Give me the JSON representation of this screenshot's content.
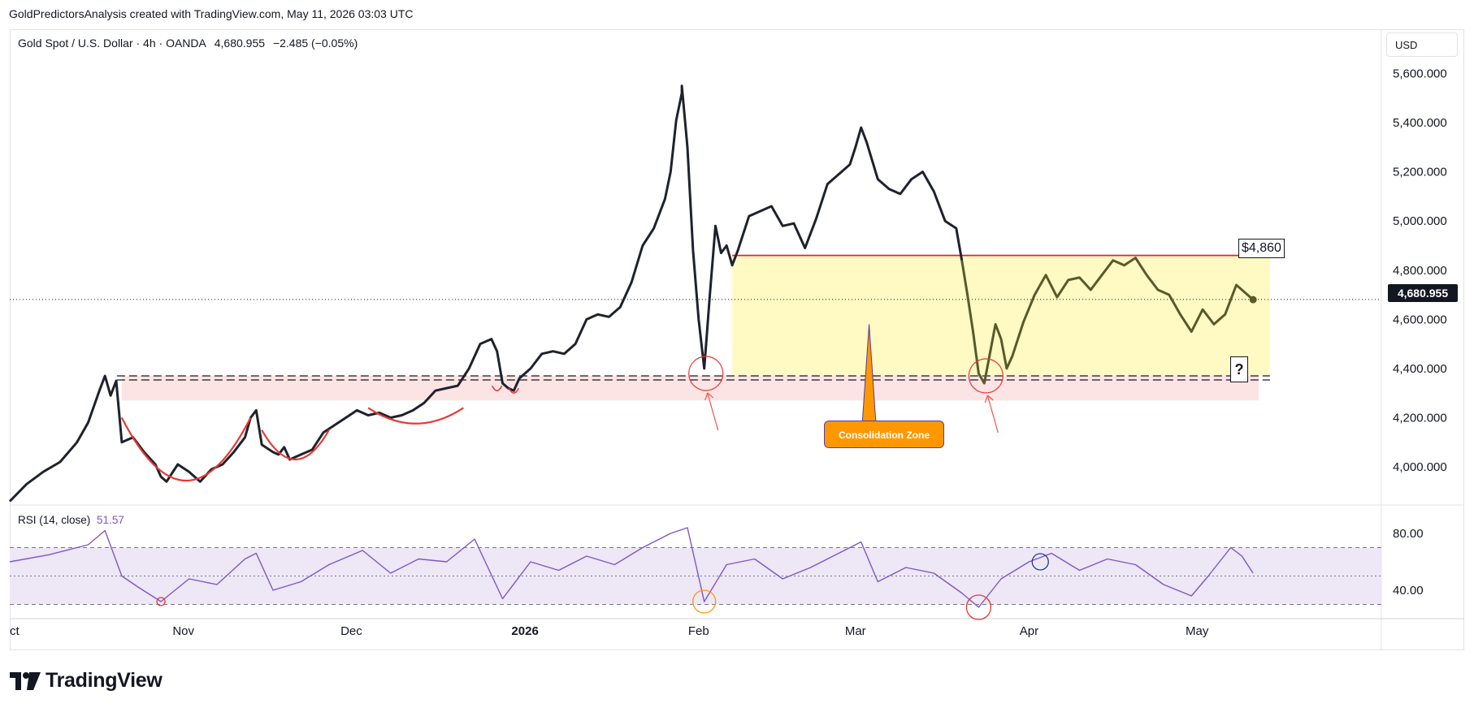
{
  "attribution": "GoldPredictorsAnalysis created with TradingView.com, May 11, 2026 03:03 UTC",
  "legend": {
    "symbol": "Gold Spot / U.S. Dollar · 4h · OANDA",
    "price": "4,680.955",
    "change": "−2.485 (−0.05%)"
  },
  "currency_button": "USD",
  "rsi_legend": {
    "label": "RSI (14, close)",
    "value": "51.57"
  },
  "current_price_tag": "4,680.955",
  "annotations": {
    "resistance_label": "$4,860",
    "zone_callout": "Consolidation Zone",
    "question_box": "?"
  },
  "logo_text": "TradingView",
  "colors": {
    "price_line": "#1e222d",
    "price_line_in_zone": "#585a2a",
    "consolidation_zone": "#fff9c4",
    "support_band": "#fde4e4",
    "resistance_line": "#e91e3f",
    "rsi_line": "#7e57c2",
    "rsi_band": "#ede7f6",
    "callout": "#ff9800"
  },
  "chart_data": [
    {
      "type": "line",
      "name": "price",
      "y_ticks": [
        "5,600.000",
        "5,400.000",
        "5,200.000",
        "5,000.000",
        "4,800.000",
        "4,600.000",
        "4,400.000",
        "4,200.000",
        "4,000.000"
      ],
      "y_tick_values": [
        5600,
        5400,
        5200,
        5000,
        4800,
        4600,
        4400,
        4200,
        4000
      ],
      "ylim": [
        3845,
        5780
      ],
      "x_ticks": [
        "ct",
        "Nov",
        "Dec",
        "2026",
        "Feb",
        "Mar",
        "Apr",
        "May"
      ],
      "x_tick_dates": [
        "2025-10-01",
        "2025-11-01",
        "2025-12-01",
        "2026-01-01",
        "2026-02-01",
        "2026-03-01",
        "2026-04-01",
        "2026-05-01"
      ],
      "xlim": [
        "2025-10-01",
        "2026-05-31"
      ],
      "grid": false,
      "series": [
        {
          "points": [
            [
              "2025-10-01",
              3860
            ],
            [
              "2025-10-04",
              3930
            ],
            [
              "2025-10-07",
              3980
            ],
            [
              "2025-10-10",
              4020
            ],
            [
              "2025-10-13",
              4100
            ],
            [
              "2025-10-15",
              4180
            ],
            [
              "2025-10-17",
              4310
            ],
            [
              "2025-10-18",
              4370
            ],
            [
              "2025-10-19",
              4290
            ],
            [
              "2025-10-20",
              4350
            ],
            [
              "2025-10-21",
              4100
            ],
            [
              "2025-10-23",
              4120
            ],
            [
              "2025-10-25",
              4060
            ],
            [
              "2025-10-27",
              4010
            ],
            [
              "2025-10-28",
              3960
            ],
            [
              "2025-10-29",
              3940
            ],
            [
              "2025-10-31",
              4010
            ],
            [
              "2025-11-02",
              3980
            ],
            [
              "2025-11-04",
              3940
            ],
            [
              "2025-11-06",
              3990
            ],
            [
              "2025-11-08",
              4010
            ],
            [
              "2025-11-10",
              4060
            ],
            [
              "2025-11-12",
              4120
            ],
            [
              "2025-11-13",
              4200
            ],
            [
              "2025-11-14",
              4230
            ],
            [
              "2025-11-15",
              4090
            ],
            [
              "2025-11-17",
              4060
            ],
            [
              "2025-11-18",
              4050
            ],
            [
              "2025-11-19",
              4080
            ],
            [
              "2025-11-20",
              4030
            ],
            [
              "2025-11-22",
              4050
            ],
            [
              "2025-11-24",
              4070
            ],
            [
              "2025-11-26",
              4140
            ],
            [
              "2025-11-28",
              4170
            ],
            [
              "2025-11-30",
              4200
            ],
            [
              "2025-12-02",
              4230
            ],
            [
              "2025-12-04",
              4210
            ],
            [
              "2025-12-06",
              4220
            ],
            [
              "2025-12-08",
              4200
            ],
            [
              "2025-12-10",
              4210
            ],
            [
              "2025-12-12",
              4230
            ],
            [
              "2025-12-14",
              4260
            ],
            [
              "2025-12-16",
              4310
            ],
            [
              "2025-12-18",
              4320
            ],
            [
              "2025-12-20",
              4330
            ],
            [
              "2025-12-22",
              4400
            ],
            [
              "2025-12-24",
              4500
            ],
            [
              "2025-12-26",
              4520
            ],
            [
              "2025-12-27",
              4470
            ],
            [
              "2025-12-28",
              4340
            ],
            [
              "2025-12-29",
              4320
            ],
            [
              "2025-12-30",
              4310
            ],
            [
              "2025-12-31",
              4360
            ],
            [
              "2026-01-02",
              4400
            ],
            [
              "2026-01-04",
              4460
            ],
            [
              "2026-01-06",
              4470
            ],
            [
              "2026-01-08",
              4460
            ],
            [
              "2026-01-10",
              4500
            ],
            [
              "2026-01-12",
              4600
            ],
            [
              "2026-01-14",
              4620
            ],
            [
              "2026-01-16",
              4610
            ],
            [
              "2026-01-18",
              4650
            ],
            [
              "2026-01-20",
              4750
            ],
            [
              "2026-01-22",
              4900
            ],
            [
              "2026-01-24",
              4970
            ],
            [
              "2026-01-26",
              5090
            ],
            [
              "2026-01-27",
              5200
            ],
            [
              "2026-01-28",
              5410
            ],
            [
              "2026-01-29",
              5520
            ],
            [
              "2026-01-29",
              5550
            ],
            [
              "2026-01-30",
              5300
            ],
            [
              "2026-01-31",
              4880
            ],
            [
              "2026-02-01",
              4600
            ],
            [
              "2026-02-02",
              4400
            ],
            [
              "2026-02-03",
              4700
            ],
            [
              "2026-02-04",
              4980
            ],
            [
              "2026-02-05",
              4870
            ],
            [
              "2026-02-06",
              4900
            ],
            [
              "2026-02-07",
              4820
            ],
            [
              "2026-02-08",
              4880
            ],
            [
              "2026-02-10",
              5020
            ],
            [
              "2026-02-12",
              5040
            ],
            [
              "2026-02-14",
              5060
            ],
            [
              "2026-02-16",
              4980
            ],
            [
              "2026-02-18",
              4990
            ],
            [
              "2026-02-20",
              4890
            ],
            [
              "2026-02-22",
              5010
            ],
            [
              "2026-02-24",
              5150
            ],
            [
              "2026-02-26",
              5190
            ],
            [
              "2026-02-28",
              5230
            ],
            [
              "2026-03-01",
              5300
            ],
            [
              "2026-03-02",
              5380
            ],
            [
              "2026-03-03",
              5320
            ],
            [
              "2026-03-05",
              5170
            ],
            [
              "2026-03-07",
              5130
            ],
            [
              "2026-03-09",
              5110
            ],
            [
              "2026-03-11",
              5170
            ],
            [
              "2026-03-13",
              5200
            ],
            [
              "2026-03-15",
              5120
            ],
            [
              "2026-03-17",
              5000
            ],
            [
              "2026-03-19",
              4970
            ],
            [
              "2026-03-20",
              4840
            ],
            [
              "2026-03-21",
              4700
            ],
            [
              "2026-03-22",
              4550
            ],
            [
              "2026-03-23",
              4380
            ],
            [
              "2026-03-24",
              4340
            ],
            [
              "2026-03-25",
              4460
            ],
            [
              "2026-03-26",
              4580
            ],
            [
              "2026-03-27",
              4520
            ],
            [
              "2026-03-28",
              4400
            ],
            [
              "2026-03-29",
              4450
            ],
            [
              "2026-03-31",
              4590
            ],
            [
              "2026-04-02",
              4700
            ],
            [
              "2026-04-04",
              4780
            ],
            [
              "2026-04-06",
              4690
            ],
            [
              "2026-04-08",
              4760
            ],
            [
              "2026-04-10",
              4770
            ],
            [
              "2026-04-12",
              4720
            ],
            [
              "2026-04-14",
              4780
            ],
            [
              "2026-04-16",
              4840
            ],
            [
              "2026-04-18",
              4820
            ],
            [
              "2026-04-20",
              4850
            ],
            [
              "2026-04-22",
              4780
            ],
            [
              "2026-04-24",
              4720
            ],
            [
              "2026-04-26",
              4700
            ],
            [
              "2026-04-28",
              4620
            ],
            [
              "2026-04-30",
              4550
            ],
            [
              "2026-05-02",
              4640
            ],
            [
              "2026-05-04",
              4580
            ],
            [
              "2026-05-06",
              4620
            ],
            [
              "2026-05-08",
              4740
            ],
            [
              "2026-05-10",
              4700
            ],
            [
              "2026-05-11",
              4680
            ]
          ]
        }
      ],
      "current_price": 4680.955,
      "overlays": {
        "resistance_level": 4860,
        "consolidation_zone": {
          "from": "2026-02-07",
          "to": "2026-05-14",
          "low": 4370,
          "high": 4860
        },
        "support_band": {
          "from": "2025-10-21",
          "to": "2026-05-12",
          "low": 4270,
          "high": 4370
        },
        "support_lines": [
          4370,
          4360
        ]
      }
    },
    {
      "type": "line",
      "name": "RSI (14, close)",
      "y_ticks": [
        "80.00",
        "40.00"
      ],
      "y_tick_values": [
        80,
        40
      ],
      "ylim": [
        20,
        100
      ],
      "band": [
        30,
        70
      ],
      "midline": 50,
      "series": [
        {
          "points": [
            [
              "2025-10-01",
              60
            ],
            [
              "2025-10-08",
              65
            ],
            [
              "2025-10-15",
              72
            ],
            [
              "2025-10-18",
              82
            ],
            [
              "2025-10-21",
              50
            ],
            [
              "2025-10-24",
              42
            ],
            [
              "2025-10-28",
              32
            ],
            [
              "2025-11-02",
              48
            ],
            [
              "2025-11-07",
              44
            ],
            [
              "2025-11-12",
              62
            ],
            [
              "2025-11-14",
              66
            ],
            [
              "2025-11-17",
              40
            ],
            [
              "2025-11-22",
              46
            ],
            [
              "2025-11-27",
              58
            ],
            [
              "2025-12-03",
              68
            ],
            [
              "2025-12-08",
              52
            ],
            [
              "2025-12-13",
              62
            ],
            [
              "2025-12-18",
              60
            ],
            [
              "2025-12-23",
              76
            ],
            [
              "2025-12-28",
              34
            ],
            [
              "2026-01-02",
              60
            ],
            [
              "2026-01-07",
              54
            ],
            [
              "2026-01-12",
              64
            ],
            [
              "2026-01-17",
              58
            ],
            [
              "2026-01-22",
              70
            ],
            [
              "2026-01-27",
              80
            ],
            [
              "2026-01-30",
              84
            ],
            [
              "2026-02-02",
              32
            ],
            [
              "2026-02-06",
              58
            ],
            [
              "2026-02-11",
              62
            ],
            [
              "2026-02-16",
              48
            ],
            [
              "2026-02-21",
              56
            ],
            [
              "2026-02-26",
              66
            ],
            [
              "2026-03-02",
              74
            ],
            [
              "2026-03-05",
              46
            ],
            [
              "2026-03-10",
              56
            ],
            [
              "2026-03-15",
              52
            ],
            [
              "2026-03-20",
              38
            ],
            [
              "2026-03-23",
              28
            ],
            [
              "2026-03-27",
              48
            ],
            [
              "2026-04-01",
              60
            ],
            [
              "2026-04-05",
              66
            ],
            [
              "2026-04-10",
              54
            ],
            [
              "2026-04-15",
              62
            ],
            [
              "2026-04-20",
              58
            ],
            [
              "2026-04-25",
              44
            ],
            [
              "2026-04-30",
              36
            ],
            [
              "2026-05-03",
              50
            ],
            [
              "2026-05-07",
              70
            ],
            [
              "2026-05-09",
              64
            ],
            [
              "2026-05-11",
              52
            ]
          ]
        }
      ],
      "markers": [
        "2025-10-28",
        "2026-02-02",
        "2026-03-23",
        "2026-04-03"
      ]
    }
  ]
}
